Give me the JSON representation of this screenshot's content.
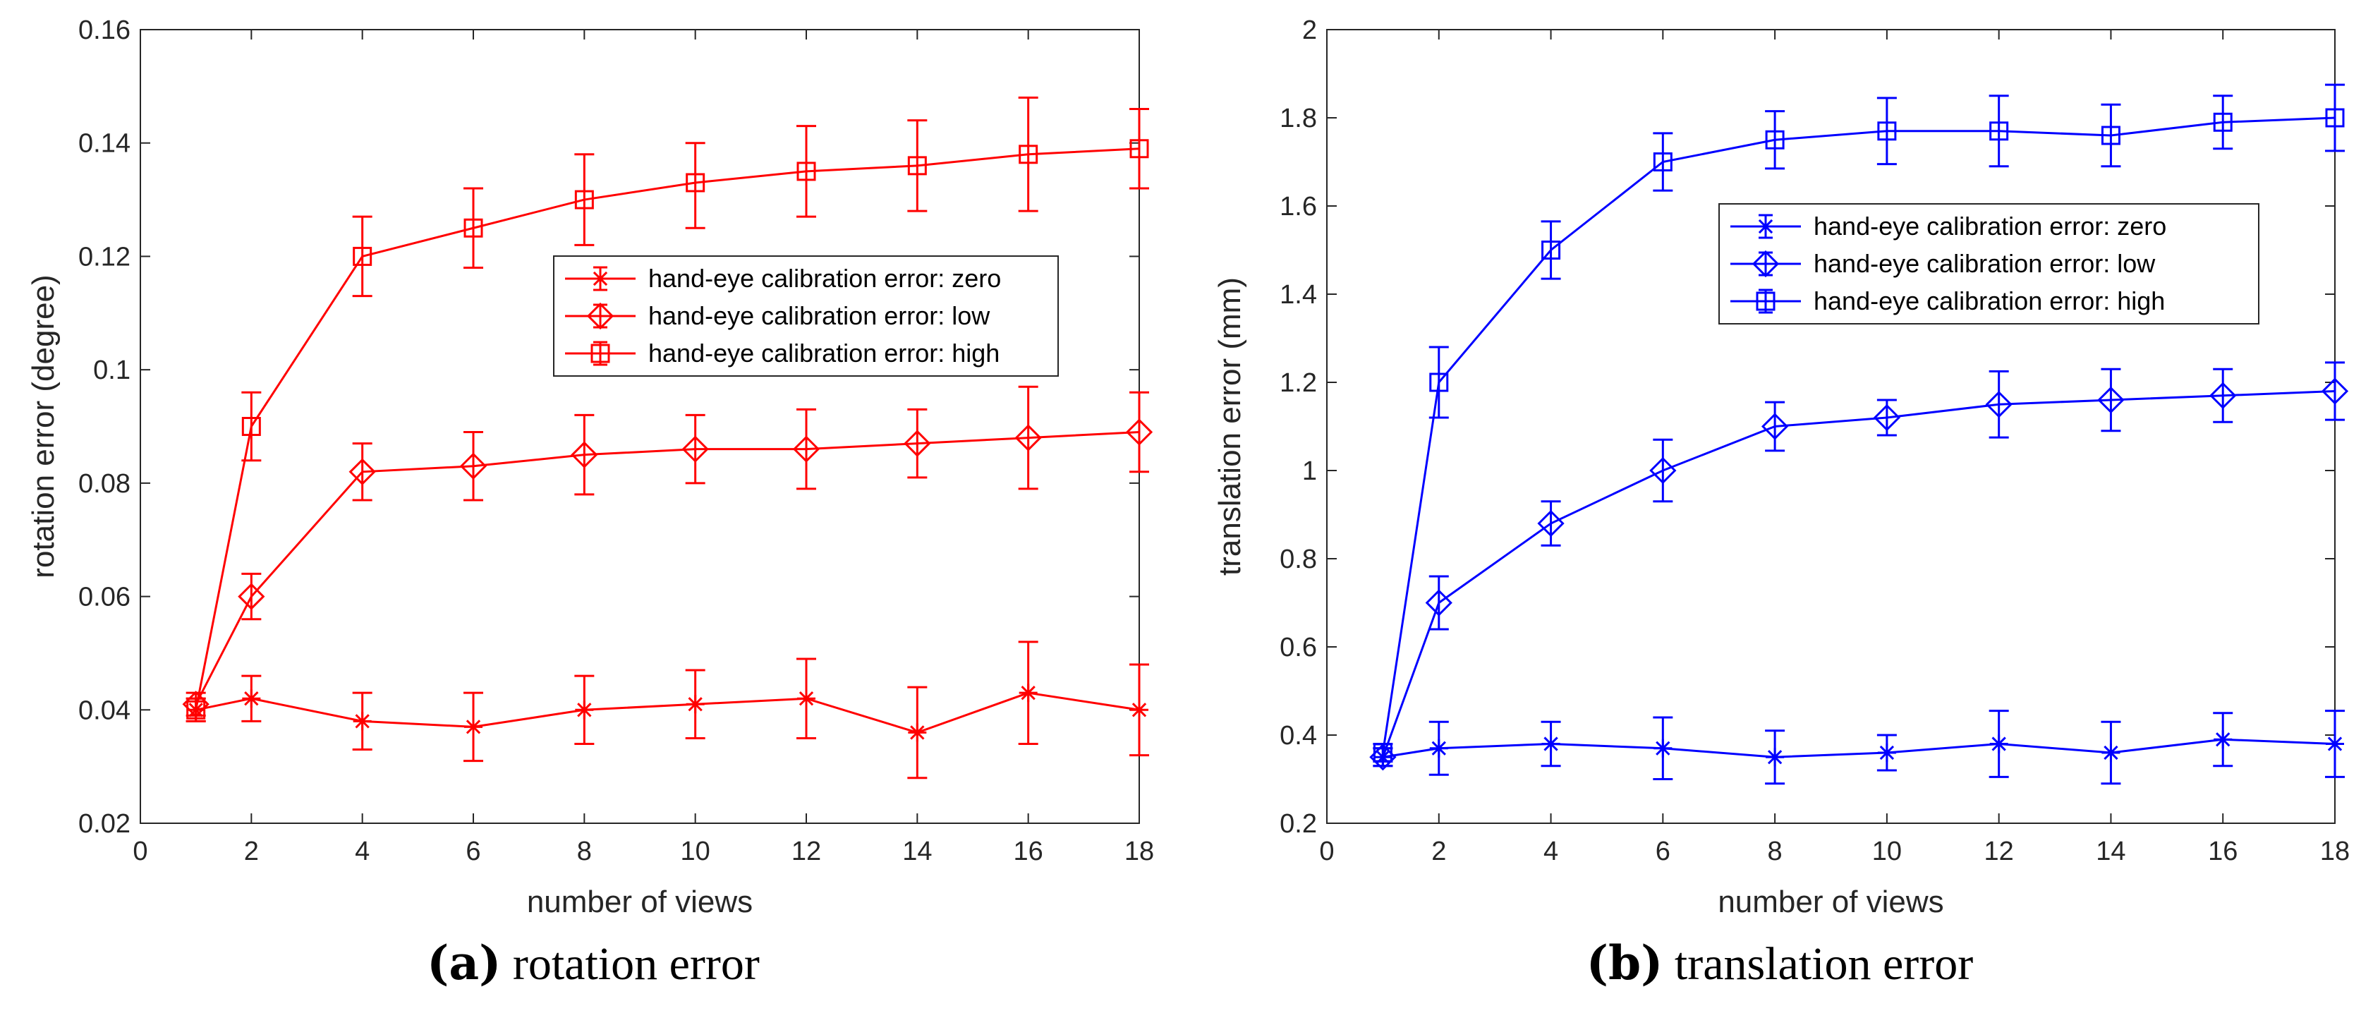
{
  "chart_data": [
    {
      "type": "line",
      "caption_label": "(a)",
      "caption_text": "rotation error",
      "xlabel": "number of views",
      "ylabel": "rotation error (degree)",
      "xlim": [
        0,
        18
      ],
      "ylim": [
        0.02,
        0.16
      ],
      "xticks": [
        0,
        2,
        4,
        6,
        8,
        10,
        12,
        14,
        16,
        18
      ],
      "xtick_labels": [
        "0",
        "2",
        "4",
        "6",
        "8",
        "10",
        "12",
        "14",
        "16",
        "18"
      ],
      "yticks": [
        0.02,
        0.04,
        0.06,
        0.08,
        0.1,
        0.12,
        0.14,
        0.16
      ],
      "ytick_labels": [
        "0.02",
        "0.04",
        "0.06",
        "0.08",
        "0.1",
        "0.12",
        "0.14",
        "0.16"
      ],
      "grid": false,
      "color": "#ff0000",
      "legend_position": "center-right",
      "x": [
        1,
        2,
        4,
        6,
        8,
        10,
        12,
        14,
        16,
        18
      ],
      "series": [
        {
          "name": "hand-eye calibration error: zero",
          "marker": "asterisk",
          "values": [
            0.04,
            0.042,
            0.038,
            0.037,
            0.04,
            0.041,
            0.042,
            0.036,
            0.043,
            0.04
          ],
          "err_low": [
            0.038,
            0.038,
            0.033,
            0.031,
            0.034,
            0.035,
            0.035,
            0.028,
            0.034,
            0.032
          ],
          "err_high": [
            0.042,
            0.046,
            0.043,
            0.043,
            0.046,
            0.047,
            0.049,
            0.044,
            0.052,
            0.048
          ]
        },
        {
          "name": "hand-eye calibration error: low",
          "marker": "diamond",
          "values": [
            0.041,
            0.06,
            0.082,
            0.083,
            0.085,
            0.086,
            0.086,
            0.087,
            0.088,
            0.089
          ],
          "err_low": [
            0.039,
            0.056,
            0.077,
            0.077,
            0.078,
            0.08,
            0.079,
            0.081,
            0.079,
            0.082
          ],
          "err_high": [
            0.043,
            0.064,
            0.087,
            0.089,
            0.092,
            0.092,
            0.093,
            0.093,
            0.097,
            0.096
          ]
        },
        {
          "name": "hand-eye calibration error: high",
          "marker": "square",
          "values": [
            0.04,
            0.09,
            0.12,
            0.125,
            0.13,
            0.133,
            0.135,
            0.136,
            0.138,
            0.139
          ],
          "err_low": [
            0.038,
            0.084,
            0.113,
            0.118,
            0.122,
            0.125,
            0.127,
            0.128,
            0.128,
            0.132
          ],
          "err_high": [
            0.042,
            0.096,
            0.127,
            0.132,
            0.138,
            0.14,
            0.143,
            0.144,
            0.148,
            0.146
          ]
        }
      ]
    },
    {
      "type": "line",
      "caption_label": "(b)",
      "caption_text": "translation error",
      "xlabel": "number of views",
      "ylabel": "translation error (mm)",
      "xlim": [
        0,
        18
      ],
      "ylim": [
        0.2,
        2
      ],
      "xticks": [
        0,
        2,
        4,
        6,
        8,
        10,
        12,
        14,
        16,
        18
      ],
      "xtick_labels": [
        "0",
        "2",
        "4",
        "6",
        "8",
        "10",
        "12",
        "14",
        "16",
        "18"
      ],
      "yticks": [
        0.2,
        0.4,
        0.6,
        0.8,
        1.0,
        1.2,
        1.4,
        1.6,
        1.8,
        2.0
      ],
      "ytick_labels": [
        "0.2",
        "0.4",
        "0.6",
        "0.8",
        "1",
        "1.2",
        "1.4",
        "1.6",
        "1.8",
        "2"
      ],
      "grid": false,
      "color": "#0000ff",
      "legend_position": "upper-center",
      "x": [
        1,
        2,
        4,
        6,
        8,
        10,
        12,
        14,
        16,
        18
      ],
      "series": [
        {
          "name": "hand-eye calibration error: zero",
          "marker": "asterisk",
          "values": [
            0.35,
            0.37,
            0.38,
            0.37,
            0.35,
            0.36,
            0.38,
            0.36,
            0.39,
            0.38
          ],
          "err_low": [
            0.33,
            0.31,
            0.33,
            0.3,
            0.29,
            0.32,
            0.305,
            0.29,
            0.33,
            0.305
          ],
          "err_high": [
            0.37,
            0.43,
            0.43,
            0.44,
            0.41,
            0.4,
            0.455,
            0.43,
            0.45,
            0.455
          ]
        },
        {
          "name": "hand-eye calibration error: low",
          "marker": "diamond",
          "values": [
            0.35,
            0.7,
            0.88,
            1.0,
            1.1,
            1.12,
            1.15,
            1.16,
            1.17,
            1.18
          ],
          "err_low": [
            0.33,
            0.64,
            0.83,
            0.93,
            1.045,
            1.08,
            1.075,
            1.09,
            1.11,
            1.115
          ],
          "err_high": [
            0.37,
            0.76,
            0.93,
            1.07,
            1.155,
            1.16,
            1.225,
            1.23,
            1.23,
            1.245
          ]
        },
        {
          "name": "hand-eye calibration error: high",
          "marker": "square",
          "values": [
            0.36,
            1.2,
            1.5,
            1.7,
            1.75,
            1.77,
            1.77,
            1.76,
            1.79,
            1.8
          ],
          "err_low": [
            0.34,
            1.12,
            1.435,
            1.635,
            1.685,
            1.695,
            1.69,
            1.69,
            1.73,
            1.725
          ],
          "err_high": [
            0.38,
            1.28,
            1.565,
            1.765,
            1.815,
            1.845,
            1.85,
            1.83,
            1.85,
            1.875
          ]
        }
      ]
    }
  ]
}
